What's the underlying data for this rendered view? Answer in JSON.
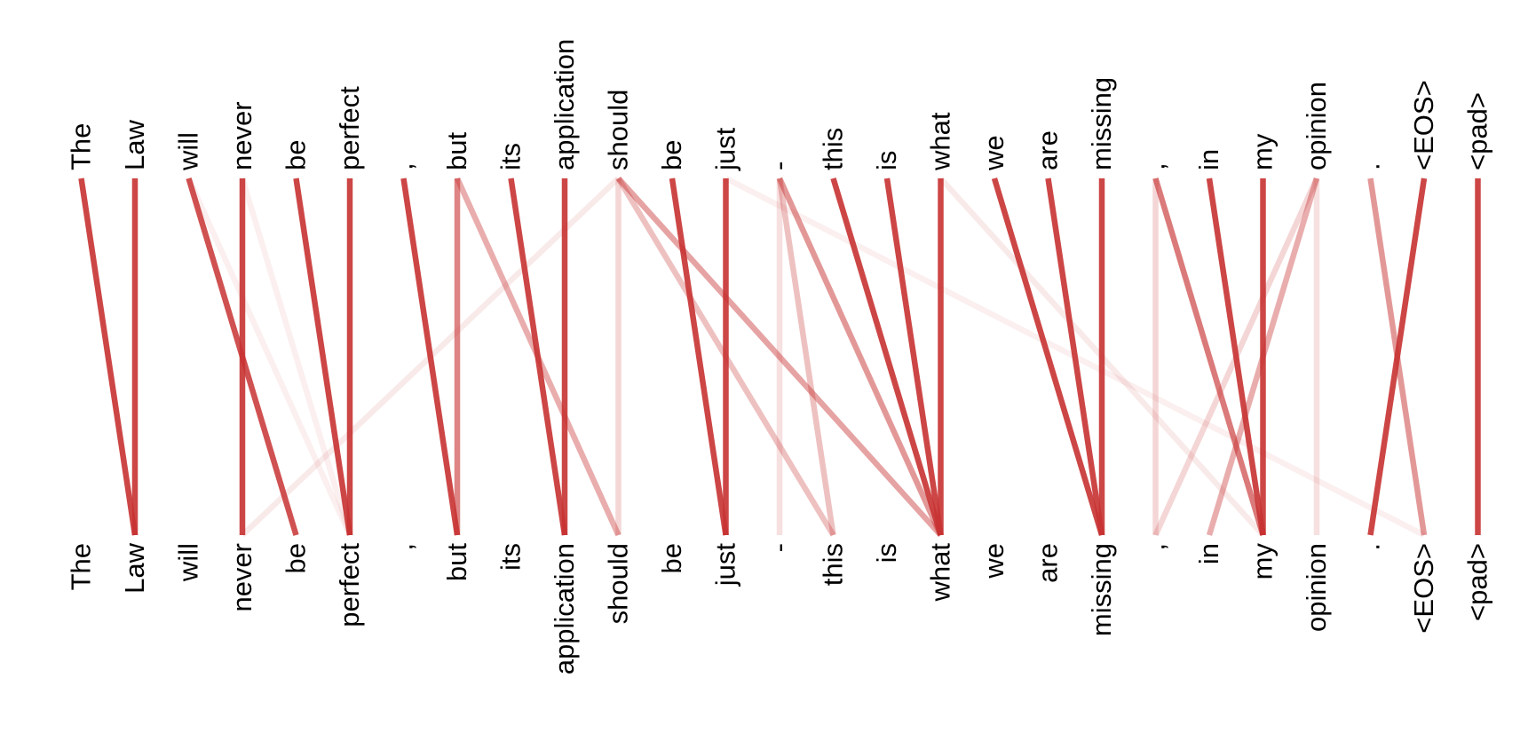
{
  "tokens": [
    "The",
    "Law",
    "will",
    "never",
    "be",
    "perfect",
    ",",
    "but",
    "its",
    "application",
    "should",
    "be",
    "just",
    "-",
    "this",
    "is",
    "what",
    "we",
    "are",
    "missing",
    ",",
    "in",
    "my",
    "opinion",
    ".",
    "<EOS>",
    "<pad>"
  ],
  "color": "#c83232",
  "links": [
    {
      "from": 0,
      "to": 1,
      "weight": 0.9
    },
    {
      "from": 1,
      "to": 1,
      "weight": 0.9
    },
    {
      "from": 2,
      "to": 4,
      "weight": 0.85
    },
    {
      "from": 3,
      "to": 3,
      "weight": 0.9
    },
    {
      "from": 4,
      "to": 5,
      "weight": 0.9
    },
    {
      "from": 5,
      "to": 5,
      "weight": 0.9
    },
    {
      "from": 6,
      "to": 7,
      "weight": 0.9
    },
    {
      "from": 7,
      "to": 7,
      "weight": 0.6
    },
    {
      "from": 7,
      "to": 10,
      "weight": 0.4
    },
    {
      "from": 8,
      "to": 9,
      "weight": 0.9
    },
    {
      "from": 9,
      "to": 9,
      "weight": 0.9
    },
    {
      "from": 10,
      "to": 16,
      "weight": 0.45
    },
    {
      "from": 10,
      "to": 10,
      "weight": 0.2
    },
    {
      "from": 10,
      "to": 3,
      "weight": 0.1
    },
    {
      "from": 10,
      "to": 14,
      "weight": 0.3
    },
    {
      "from": 11,
      "to": 12,
      "weight": 0.9
    },
    {
      "from": 12,
      "to": 12,
      "weight": 0.9
    },
    {
      "from": 13,
      "to": 16,
      "weight": 0.5
    },
    {
      "from": 13,
      "to": 14,
      "weight": 0.3
    },
    {
      "from": 13,
      "to": 13,
      "weight": 0.15
    },
    {
      "from": 14,
      "to": 16,
      "weight": 0.9
    },
    {
      "from": 15,
      "to": 16,
      "weight": 0.9
    },
    {
      "from": 16,
      "to": 16,
      "weight": 0.9
    },
    {
      "from": 17,
      "to": 19,
      "weight": 0.9
    },
    {
      "from": 18,
      "to": 19,
      "weight": 0.9
    },
    {
      "from": 19,
      "to": 19,
      "weight": 0.9
    },
    {
      "from": 20,
      "to": 22,
      "weight": 0.65
    },
    {
      "from": 20,
      "to": 20,
      "weight": 0.2
    },
    {
      "from": 21,
      "to": 22,
      "weight": 0.9
    },
    {
      "from": 22,
      "to": 22,
      "weight": 0.9
    },
    {
      "from": 23,
      "to": 21,
      "weight": 0.4
    },
    {
      "from": 23,
      "to": 20,
      "weight": 0.2
    },
    {
      "from": 23,
      "to": 23,
      "weight": 0.15
    },
    {
      "from": 24,
      "to": 25,
      "weight": 0.5
    },
    {
      "from": 25,
      "to": 24,
      "weight": 0.9
    },
    {
      "from": 26,
      "to": 26,
      "weight": 0.9
    },
    {
      "from": 2,
      "to": 5,
      "weight": 0.08
    },
    {
      "from": 3,
      "to": 5,
      "weight": 0.08
    },
    {
      "from": 16,
      "to": 22,
      "weight": 0.1
    },
    {
      "from": 12,
      "to": 25,
      "weight": 0.08
    }
  ]
}
